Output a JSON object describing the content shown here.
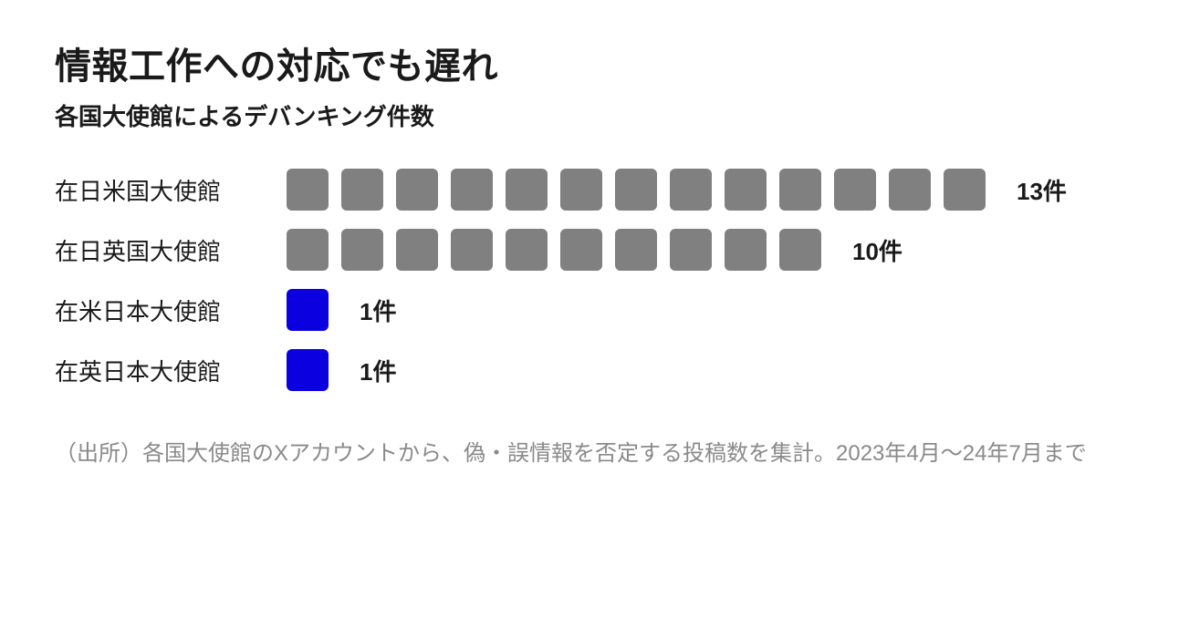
{
  "chart": {
    "type": "pictogram-bar",
    "title": "情報工作への対応でも遅れ",
    "subtitle": "各国大使館によるデバンキング件数",
    "title_fontsize": 40,
    "subtitle_fontsize": 26,
    "label_fontsize": 26,
    "count_fontsize": 26,
    "footnote_fontsize": 24,
    "background_color": "#ffffff",
    "text_color": "#1a1a1a",
    "footnote_color": "#8a8a8a",
    "square_size": 46,
    "square_gap": 14,
    "square_radius": 6,
    "row_gap": 20,
    "label_width": 230,
    "count_suffix": "件",
    "rows": [
      {
        "label": "在日米国大使館",
        "value": 13,
        "color": "#808080"
      },
      {
        "label": "在日英国大使館",
        "value": 10,
        "color": "#808080"
      },
      {
        "label": "在米日本大使館",
        "value": 1,
        "color": "#0a00e0"
      },
      {
        "label": "在英日本大使館",
        "value": 1,
        "color": "#0a00e0"
      }
    ],
    "footnote": "（出所）各国大使館のXアカウントから、偽・誤情報を否定する投稿数を集計。2023年4月〜24年7月まで"
  }
}
